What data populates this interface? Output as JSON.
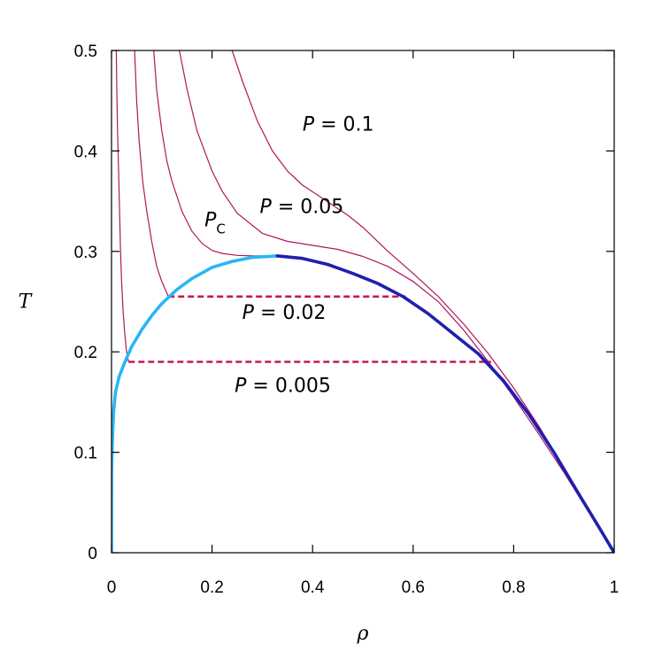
{
  "chart_data": {
    "type": "line",
    "title": "",
    "xlabel": "ρ",
    "ylabel": "T",
    "xlim": [
      0,
      1
    ],
    "ylim": [
      0,
      0.5
    ],
    "xticks": [
      "0",
      "0.2",
      "0.4",
      "0.6",
      "0.8",
      "1"
    ],
    "yticks": [
      "0",
      "0.1",
      "0.2",
      "0.3",
      "0.4",
      "0.5"
    ],
    "grid": false,
    "colors": {
      "isotherm": "#b0175e",
      "tie_line": "#c2185b",
      "coexist_gas": "#29b6f6",
      "coexist_liquid": "#1f1fb0"
    },
    "series": [
      {
        "kind": "isobar",
        "x": [
          0.0095,
          0.0105,
          0.012,
          0.014,
          0.016,
          0.018,
          0.02,
          0.023,
          0.026,
          0.03,
          0.034
        ],
        "y": [
          0.5,
          0.46,
          0.42,
          0.38,
          0.34,
          0.3,
          0.27,
          0.24,
          0.22,
          0.2,
          0.19
        ]
      },
      {
        "kind": "isobar",
        "x": [
          0.046,
          0.05,
          0.055,
          0.062,
          0.07,
          0.08,
          0.09,
          0.1,
          0.113
        ],
        "y": [
          0.5,
          0.45,
          0.41,
          0.37,
          0.34,
          0.31,
          0.285,
          0.27,
          0.255
        ]
      },
      {
        "kind": "isobar",
        "x": [
          0.084,
          0.09,
          0.1,
          0.11,
          0.12,
          0.14,
          0.16,
          0.18,
          0.2,
          0.22,
          0.25,
          0.28,
          0.31,
          0.33
        ],
        "y": [
          0.5,
          0.46,
          0.42,
          0.39,
          0.37,
          0.34,
          0.32,
          0.308,
          0.301,
          0.298,
          0.296,
          0.2955,
          0.2955,
          0.296
        ]
      },
      {
        "kind": "isobar",
        "x": [
          0.135,
          0.15,
          0.17,
          0.2,
          0.22,
          0.25,
          0.3,
          0.35,
          0.4,
          0.45,
          0.5,
          0.55,
          0.6,
          0.65,
          0.7,
          0.75,
          0.8,
          0.85,
          0.9,
          0.95,
          1.0
        ],
        "y": [
          0.5,
          0.462,
          0.42,
          0.38,
          0.36,
          0.338,
          0.318,
          0.31,
          0.306,
          0.302,
          0.295,
          0.285,
          0.27,
          0.25,
          0.222,
          0.19,
          0.155,
          0.118,
          0.08,
          0.04,
          0.0
        ]
      },
      {
        "kind": "isobar",
        "x": [
          0.24,
          0.26,
          0.29,
          0.32,
          0.35,
          0.38,
          0.41,
          0.44,
          0.47,
          0.5,
          0.55,
          0.6,
          0.65,
          0.7,
          0.75,
          0.8,
          0.85,
          0.9,
          0.95,
          1.0
        ],
        "y": [
          0.5,
          0.47,
          0.43,
          0.4,
          0.38,
          0.366,
          0.356,
          0.346,
          0.336,
          0.324,
          0.3,
          0.278,
          0.255,
          0.228,
          0.198,
          0.164,
          0.126,
          0.085,
          0.043,
          0.0
        ]
      },
      {
        "kind": "tie-line",
        "x": [
          0.113,
          0.585
        ],
        "y": [
          0.255,
          0.255
        ]
      },
      {
        "kind": "tie-line",
        "x": [
          0.034,
          0.755
        ],
        "y": [
          0.19,
          0.19
        ]
      },
      {
        "kind": "coexistence-gas",
        "x": [
          0.0,
          0.0002,
          0.0015,
          0.004,
          0.008,
          0.015,
          0.025,
          0.04,
          0.06,
          0.08,
          0.1,
          0.13,
          0.16,
          0.2,
          0.24,
          0.28,
          0.33
        ],
        "y": [
          0.0,
          0.08,
          0.11,
          0.14,
          0.16,
          0.175,
          0.188,
          0.205,
          0.222,
          0.236,
          0.248,
          0.262,
          0.273,
          0.284,
          0.29,
          0.294,
          0.2955
        ]
      },
      {
        "kind": "coexistence-liquid",
        "x": [
          0.33,
          0.38,
          0.43,
          0.48,
          0.53,
          0.58,
          0.63,
          0.68,
          0.73,
          0.78,
          0.83,
          0.88,
          0.93,
          0.97,
          1.0
        ],
        "y": [
          0.2955,
          0.293,
          0.287,
          0.278,
          0.268,
          0.255,
          0.238,
          0.218,
          0.198,
          0.171,
          0.138,
          0.1,
          0.058,
          0.025,
          0.0
        ]
      }
    ],
    "annotations": [
      {
        "var": "P",
        "sub": "",
        "text": " = 0.1",
        "x": 0.38,
        "y": 0.42
      },
      {
        "var": "P",
        "sub": "",
        "text": " = 0.05",
        "x": 0.295,
        "y": 0.338
      },
      {
        "var": "P",
        "sub": "C",
        "text": "",
        "x": 0.185,
        "y": 0.325
      },
      {
        "var": "P",
        "sub": "",
        "text": " = 0.02",
        "x": 0.26,
        "y": 0.233
      },
      {
        "var": "P",
        "sub": "",
        "text": " = 0.005",
        "x": 0.245,
        "y": 0.16
      }
    ]
  }
}
